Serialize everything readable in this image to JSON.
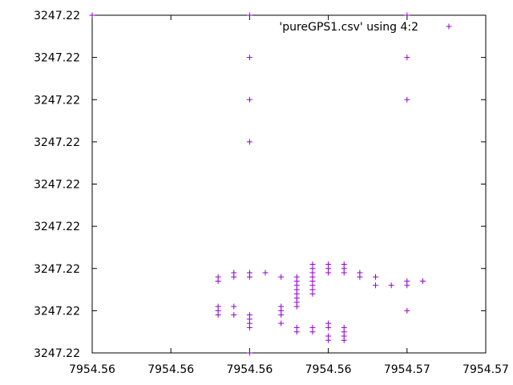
{
  "chart_data": {
    "type": "scatter",
    "grid": false,
    "legend_position": "top-right",
    "point_color": "#9400d3",
    "axis_color": "#000000",
    "x_tick_labels": [
      "7954.56",
      "7954.56",
      "7954.56",
      "7954.56",
      "7954.57",
      "7954.57"
    ],
    "y_tick_labels": [
      "3247.22",
      "3247.22",
      "3247.22",
      "3247.22",
      "3247.22",
      "3247.22",
      "3247.22",
      "3247.22",
      "3247.22"
    ],
    "xlim": [
      7954.5592,
      7954.5742
    ],
    "ylim": [
      3247.2176,
      3247.2256
    ],
    "series": [
      {
        "name": "'pureGPS1.csv' using 4:2",
        "marker": "plus",
        "points": [
          [
            7954.5592,
            3247.2256
          ],
          [
            7954.5652,
            3247.2256
          ],
          [
            7954.5712,
            3247.2256
          ],
          [
            7954.5652,
            3247.2246
          ],
          [
            7954.5712,
            3247.2246
          ],
          [
            7954.5652,
            3247.2236
          ],
          [
            7954.5712,
            3247.2236
          ],
          [
            7954.5652,
            3247.2226
          ],
          [
            7954.5652,
            3247.2176
          ],
          [
            7954.564,
            3247.2194
          ],
          [
            7954.564,
            3247.2193
          ],
          [
            7954.564,
            3247.2187
          ],
          [
            7954.564,
            3247.2186
          ],
          [
            7954.564,
            3247.2185
          ],
          [
            7954.5646,
            3247.2195
          ],
          [
            7954.5646,
            3247.2194
          ],
          [
            7954.5646,
            3247.2187
          ],
          [
            7954.5646,
            3247.2185
          ],
          [
            7954.5652,
            3247.2195
          ],
          [
            7954.5652,
            3247.2194
          ],
          [
            7954.5652,
            3247.2185
          ],
          [
            7954.5652,
            3247.2184
          ],
          [
            7954.5652,
            3247.2183
          ],
          [
            7954.5652,
            3247.2182
          ],
          [
            7954.5658,
            3247.2195
          ],
          [
            7954.5664,
            3247.2194
          ],
          [
            7954.5664,
            3247.2187
          ],
          [
            7954.5664,
            3247.2186
          ],
          [
            7954.5664,
            3247.2185
          ],
          [
            7954.5664,
            3247.2183
          ],
          [
            7954.567,
            3247.2194
          ],
          [
            7954.567,
            3247.2193
          ],
          [
            7954.567,
            3247.2192
          ],
          [
            7954.567,
            3247.2191
          ],
          [
            7954.567,
            3247.219
          ],
          [
            7954.567,
            3247.2189
          ],
          [
            7954.567,
            3247.2188
          ],
          [
            7954.567,
            3247.2187
          ],
          [
            7954.567,
            3247.2182
          ],
          [
            7954.567,
            3247.2181
          ],
          [
            7954.5676,
            3247.2197
          ],
          [
            7954.5676,
            3247.2196
          ],
          [
            7954.5676,
            3247.2195
          ],
          [
            7954.5676,
            3247.2194
          ],
          [
            7954.5676,
            3247.2193
          ],
          [
            7954.5676,
            3247.2192
          ],
          [
            7954.5676,
            3247.2191
          ],
          [
            7954.5676,
            3247.219
          ],
          [
            7954.5676,
            3247.2182
          ],
          [
            7954.5676,
            3247.2181
          ],
          [
            7954.5682,
            3247.2197
          ],
          [
            7954.5682,
            3247.2196
          ],
          [
            7954.5682,
            3247.2195
          ],
          [
            7954.5682,
            3247.2183
          ],
          [
            7954.5682,
            3247.2182
          ],
          [
            7954.5682,
            3247.218
          ],
          [
            7954.5682,
            3247.2179
          ],
          [
            7954.5688,
            3247.2197
          ],
          [
            7954.5688,
            3247.2196
          ],
          [
            7954.5688,
            3247.2195
          ],
          [
            7954.5688,
            3247.2182
          ],
          [
            7954.5688,
            3247.2181
          ],
          [
            7954.5688,
            3247.218
          ],
          [
            7954.5688,
            3247.2179
          ],
          [
            7954.5694,
            3247.2195
          ],
          [
            7954.5694,
            3247.2194
          ],
          [
            7954.57,
            3247.2194
          ],
          [
            7954.57,
            3247.2192
          ],
          [
            7954.5706,
            3247.2192
          ],
          [
            7954.5712,
            3247.2193
          ],
          [
            7954.5712,
            3247.2192
          ],
          [
            7954.5712,
            3247.2186
          ],
          [
            7954.5718,
            3247.2193
          ]
        ]
      }
    ]
  }
}
